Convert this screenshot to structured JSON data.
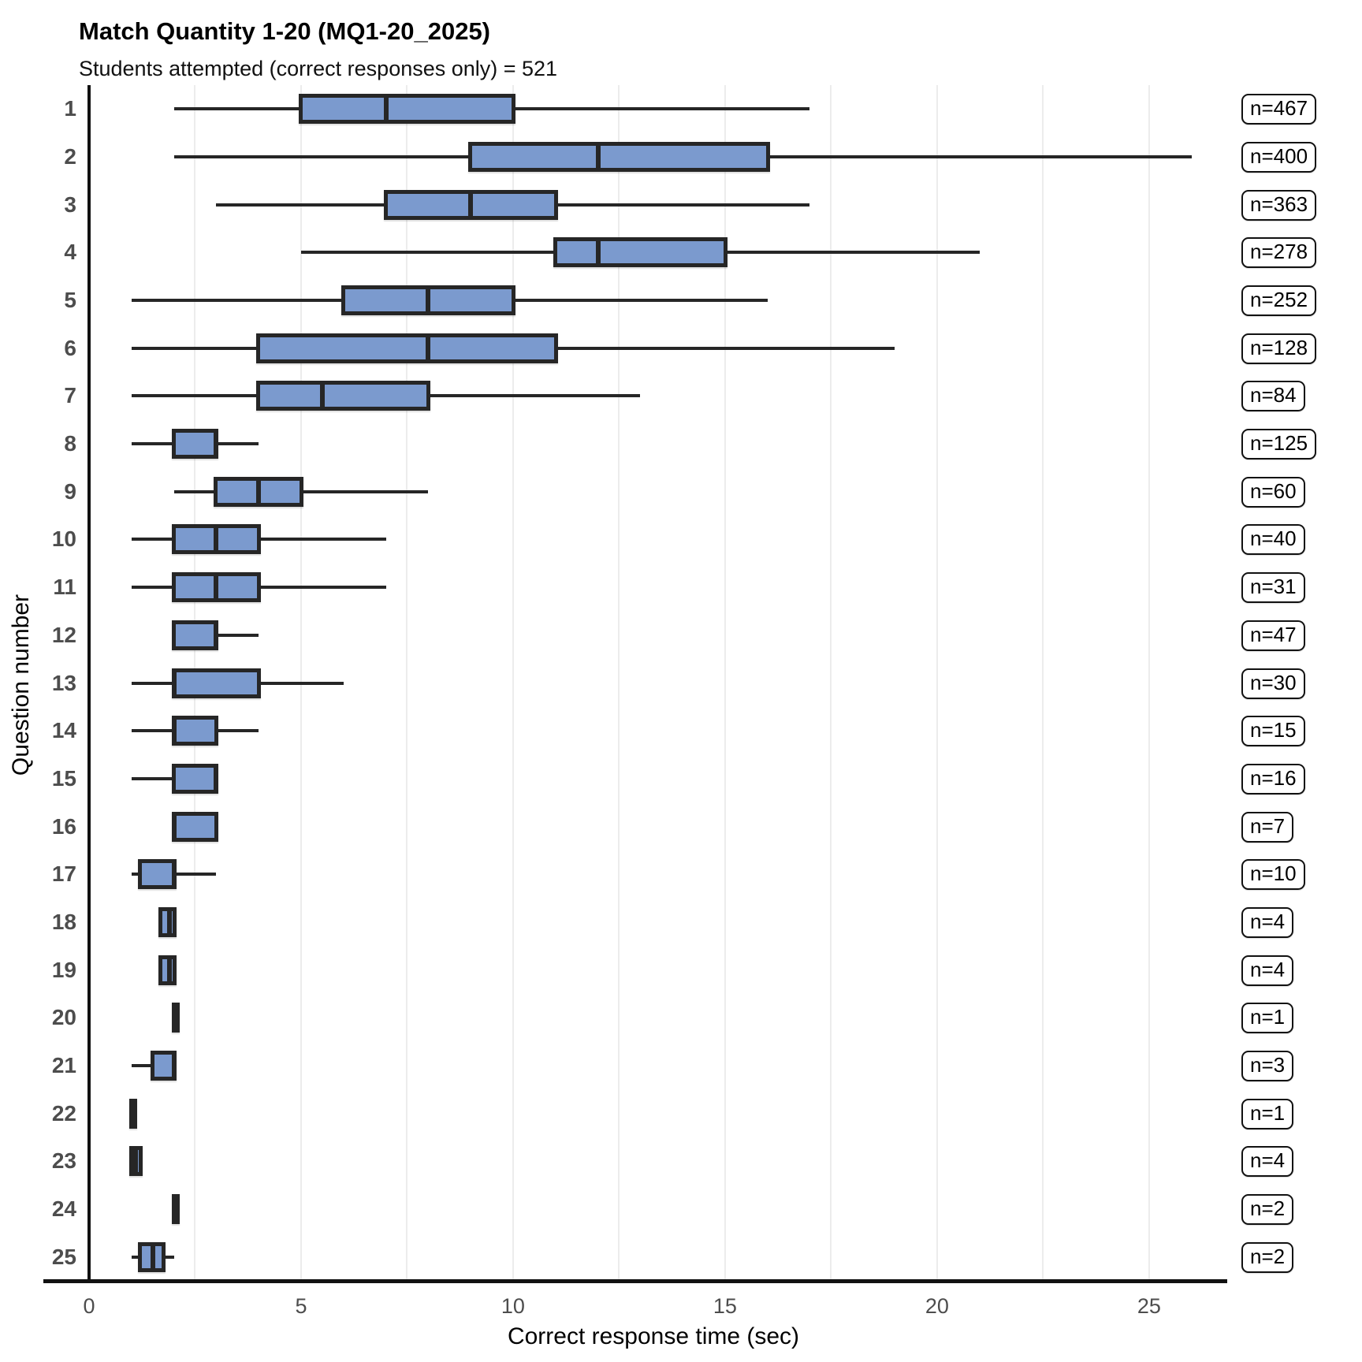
{
  "title": "Match Quantity 1-20 (MQ1-20_2025)",
  "subtitle": "Students attempted (correct responses only) = 521",
  "chart_data": {
    "type": "boxplot",
    "orientation": "horizontal",
    "title": "Match Quantity 1-20 (MQ1-20_2025)",
    "subtitle": "Students attempted (correct responses only) = 521",
    "xlabel": "Correct response time (sec)",
    "ylabel": "Question number",
    "xlim": [
      0,
      26.62
    ],
    "x_ticks": [
      0,
      5,
      10,
      15,
      20,
      25
    ],
    "x_tick_labels": [
      "0",
      "5",
      "10",
      "15",
      "20",
      "25"
    ],
    "gridline_interval": 2.5,
    "grid": true,
    "legend": "none",
    "colors": {
      "box_fill": "#7b9ace",
      "box_border": "#262626",
      "whisker": "#262626",
      "gridline": "#ececec",
      "axis_line": "#111111",
      "tick_label": "#4d4d4d"
    },
    "rows": [
      {
        "question": "1",
        "min": 2,
        "q1": 5,
        "median": 7,
        "q3": 10,
        "max": 17,
        "n_label": "n=467"
      },
      {
        "question": "2",
        "min": 2,
        "q1": 9,
        "median": 12,
        "q3": 16,
        "max": 26,
        "n_label": "n=400"
      },
      {
        "question": "3",
        "min": 3,
        "q1": 7,
        "median": 9,
        "q3": 11,
        "max": 17,
        "n_label": "n=363"
      },
      {
        "question": "4",
        "min": 5,
        "q1": 11,
        "median": 12,
        "q3": 15,
        "max": 21,
        "n_label": "n=278"
      },
      {
        "question": "5",
        "min": 1,
        "q1": 6,
        "median": 8,
        "q3": 10,
        "max": 16,
        "n_label": "n=252"
      },
      {
        "question": "6",
        "min": 1,
        "q1": 4,
        "median": 8,
        "q3": 11,
        "max": 19,
        "n_label": "n=128"
      },
      {
        "question": "7",
        "min": 1,
        "q1": 4,
        "median": 5.5,
        "q3": 8,
        "max": 13,
        "n_label": "n=84"
      },
      {
        "question": "8",
        "min": 1,
        "q1": 2,
        "median": 3,
        "q3": 3,
        "max": 4,
        "n_label": "n=125"
      },
      {
        "question": "9",
        "min": 2,
        "q1": 3,
        "median": 4,
        "q3": 5,
        "max": 8,
        "n_label": "n=60"
      },
      {
        "question": "10",
        "min": 1,
        "q1": 2,
        "median": 3,
        "q3": 4,
        "max": 7,
        "n_label": "n=40"
      },
      {
        "question": "11",
        "min": 1,
        "q1": 2,
        "median": 3,
        "q3": 4,
        "max": 7,
        "n_label": "n=31"
      },
      {
        "question": "12",
        "min": 2,
        "q1": 2,
        "median": 3,
        "q3": 3,
        "max": 4,
        "n_label": "n=47"
      },
      {
        "question": "13",
        "min": 1,
        "q1": 2,
        "median": 2,
        "q3": 4,
        "max": 6,
        "n_label": "n=30"
      },
      {
        "question": "14",
        "min": 1,
        "q1": 2,
        "median": 2,
        "q3": 3,
        "max": 4,
        "n_label": "n=15"
      },
      {
        "question": "15",
        "min": 1,
        "q1": 2,
        "median": 3,
        "q3": 3,
        "max": 3,
        "n_label": "n=16"
      },
      {
        "question": "16",
        "min": 2,
        "q1": 2,
        "median": 2,
        "q3": 3,
        "max": 3,
        "n_label": "n=7"
      },
      {
        "question": "17",
        "min": 1,
        "q1": 1.2,
        "median": 2,
        "q3": 2,
        "max": 3,
        "n_label": "n=10"
      },
      {
        "question": "18",
        "min": 1.7,
        "q1": 1.7,
        "median": 1.9,
        "q3": 2,
        "max": 2,
        "n_label": "n=4"
      },
      {
        "question": "19",
        "min": 1.7,
        "q1": 1.7,
        "median": 1.9,
        "q3": 2,
        "max": 2,
        "n_label": "n=4"
      },
      {
        "question": "20",
        "min": 2,
        "q1": 2,
        "median": 2,
        "q3": 2,
        "max": 2,
        "n_label": "n=1"
      },
      {
        "question": "21",
        "min": 1,
        "q1": 1.5,
        "median": 2,
        "q3": 2,
        "max": 2,
        "n_label": "n=3"
      },
      {
        "question": "22",
        "min": 1,
        "q1": 1,
        "median": 1,
        "q3": 1,
        "max": 1,
        "n_label": "n=1"
      },
      {
        "question": "23",
        "min": 1,
        "q1": 1,
        "median": 1.1,
        "q3": 1.2,
        "max": 1.2,
        "n_label": "n=4"
      },
      {
        "question": "24",
        "min": 2,
        "q1": 2,
        "median": 2,
        "q3": 2,
        "max": 2,
        "n_label": "n=2"
      },
      {
        "question": "25",
        "min": 1,
        "q1": 1.2,
        "median": 1.5,
        "q3": 1.75,
        "max": 2,
        "n_label": "n=2"
      }
    ]
  }
}
